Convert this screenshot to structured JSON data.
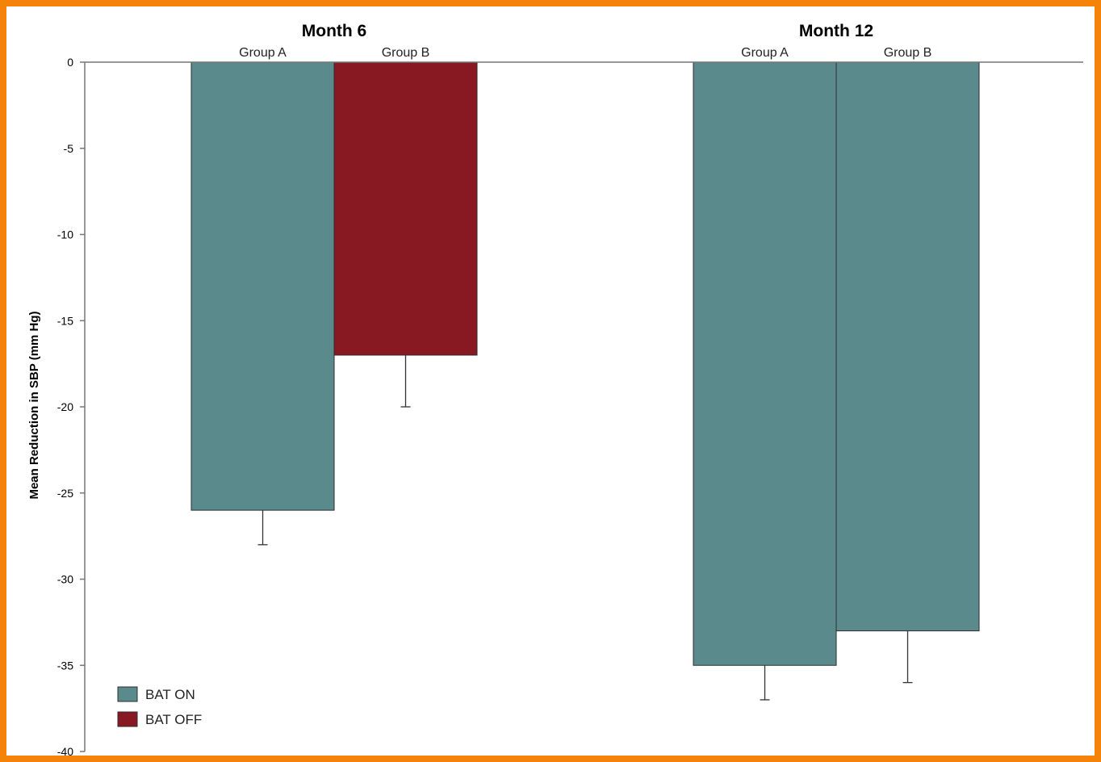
{
  "colors": {
    "frame": "#f5830a",
    "bat_on": "#5a8a8c",
    "bat_off": "#881822",
    "axis": "#777777",
    "error_bar": "#333333"
  },
  "chart_data": {
    "type": "bar",
    "ylabel": "Mean Reduction in SBP (mm Hg)",
    "ylim": [
      -40,
      0
    ],
    "yticks": [
      0,
      -5,
      -10,
      -15,
      -20,
      -25,
      -30,
      -35,
      -40
    ],
    "grid": false,
    "legend_position": "bottom-left",
    "legend": [
      {
        "name": "BAT ON",
        "color": "#5a8a8c"
      },
      {
        "name": "BAT OFF",
        "color": "#881822"
      }
    ],
    "periods": [
      {
        "title": "Month 6",
        "bars": [
          {
            "group": "Group A",
            "value": -26,
            "error_low": -28,
            "status": "BAT ON"
          },
          {
            "group": "Group B",
            "value": -17,
            "error_low": -20,
            "status": "BAT OFF"
          }
        ]
      },
      {
        "title": "Month 12",
        "bars": [
          {
            "group": "Group A",
            "value": -35,
            "error_low": -37,
            "status": "BAT ON"
          },
          {
            "group": "Group B",
            "value": -33,
            "error_low": -36,
            "status": "BAT ON"
          }
        ]
      }
    ]
  }
}
